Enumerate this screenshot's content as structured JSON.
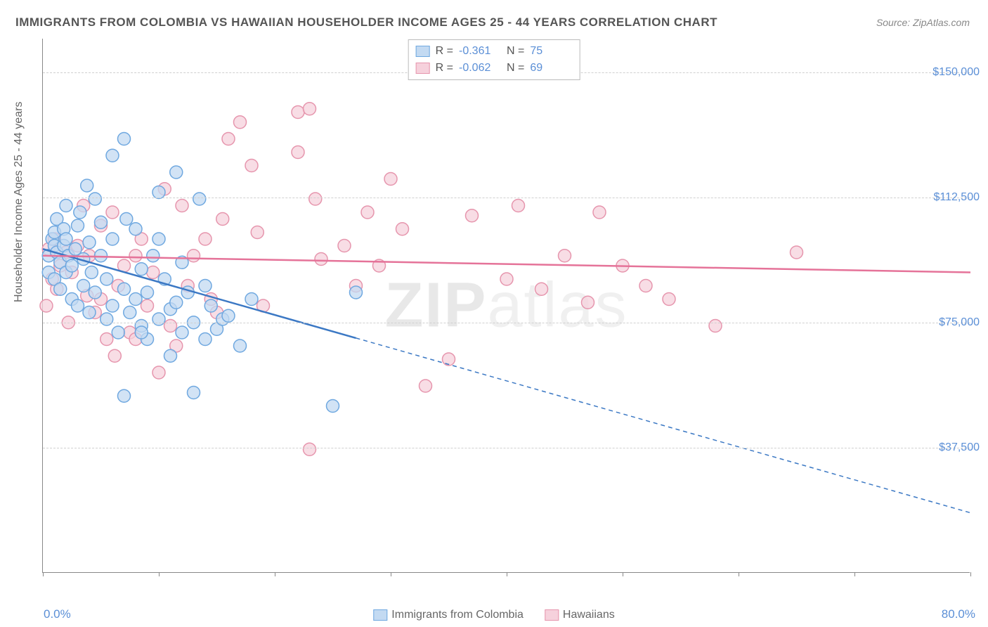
{
  "title": "IMMIGRANTS FROM COLOMBIA VS HAWAIIAN HOUSEHOLDER INCOME AGES 25 - 44 YEARS CORRELATION CHART",
  "source": "Source: ZipAtlas.com",
  "ylabel": "Householder Income Ages 25 - 44 years",
  "watermark_a": "ZIP",
  "watermark_b": "atlas",
  "chart": {
    "type": "scatter-correlation",
    "background_color": "#ffffff",
    "grid_color": "#d0d0d0",
    "axis_color": "#888888",
    "label_color": "#5b8fd6",
    "text_color": "#666666",
    "marker_radius": 9,
    "marker_stroke_width": 1.5,
    "line_width": 2.5,
    "xlim": [
      0,
      80
    ],
    "ylim": [
      0,
      160000
    ],
    "xticks": [
      0,
      10,
      20,
      30,
      40,
      50,
      60,
      70,
      80
    ],
    "xtick_labels": {
      "0": "0.0%",
      "80": "80.0%"
    },
    "yticks": [
      37500,
      75000,
      112500,
      150000
    ],
    "ytick_labels": [
      "$37,500",
      "$75,000",
      "$112,500",
      "$150,000"
    ],
    "series": [
      {
        "name": "Immigrants from Colombia",
        "fill": "#c3daf2",
        "stroke": "#6fa8e0",
        "line_color": "#3b78c4",
        "R_label": "R =",
        "R": "-0.361",
        "N_label": "N =",
        "N": "75",
        "trend": {
          "x1": 0,
          "y1": 97000,
          "x2": 80,
          "y2": 18000,
          "solid_until_x": 27
        },
        "points": [
          [
            0.5,
            95000
          ],
          [
            0.5,
            90000
          ],
          [
            0.8,
            100000
          ],
          [
            1,
            98000
          ],
          [
            1,
            102000
          ],
          [
            1,
            88000
          ],
          [
            1.2,
            96000
          ],
          [
            1.2,
            106000
          ],
          [
            1.5,
            93000
          ],
          [
            1.5,
            85000
          ],
          [
            1.8,
            98000
          ],
          [
            1.8,
            103000
          ],
          [
            2,
            100000
          ],
          [
            2,
            90000
          ],
          [
            2,
            110000
          ],
          [
            2.2,
            95000
          ],
          [
            2.5,
            82000
          ],
          [
            2.5,
            92000
          ],
          [
            2.8,
            97000
          ],
          [
            3,
            104000
          ],
          [
            3,
            80000
          ],
          [
            3.2,
            108000
          ],
          [
            3.5,
            86000
          ],
          [
            3.5,
            94000
          ],
          [
            4,
            99000
          ],
          [
            4,
            78000
          ],
          [
            4.2,
            90000
          ],
          [
            4.5,
            112000
          ],
          [
            4.5,
            84000
          ],
          [
            5,
            95000
          ],
          [
            5,
            105000
          ],
          [
            5.5,
            76000
          ],
          [
            5.5,
            88000
          ],
          [
            6,
            80000
          ],
          [
            6,
            100000
          ],
          [
            6.5,
            72000
          ],
          [
            7,
            85000
          ],
          [
            7,
            130000
          ],
          [
            7.2,
            106000
          ],
          [
            7.5,
            78000
          ],
          [
            8,
            82000
          ],
          [
            8,
            103000
          ],
          [
            8.5,
            74000
          ],
          [
            8.5,
            91000
          ],
          [
            9,
            84000
          ],
          [
            9,
            70000
          ],
          [
            10,
            114000
          ],
          [
            10,
            76000
          ],
          [
            10.5,
            88000
          ],
          [
            11,
            79000
          ],
          [
            11,
            65000
          ],
          [
            11.5,
            120000
          ],
          [
            11.5,
            81000
          ],
          [
            12,
            93000
          ],
          [
            12,
            72000
          ],
          [
            12.5,
            84000
          ],
          [
            13,
            75000
          ],
          [
            13.5,
            112000
          ],
          [
            14,
            70000
          ],
          [
            14,
            86000
          ],
          [
            14.5,
            80000
          ],
          [
            15,
            73000
          ],
          [
            15.5,
            76000
          ],
          [
            7,
            53000
          ],
          [
            13,
            54000
          ],
          [
            17,
            68000
          ],
          [
            16,
            77000
          ],
          [
            9.5,
            95000
          ],
          [
            10,
            100000
          ],
          [
            6,
            125000
          ],
          [
            3.8,
            116000
          ],
          [
            27,
            84000
          ],
          [
            25,
            50000
          ],
          [
            18,
            82000
          ],
          [
            8.5,
            72000
          ]
        ]
      },
      {
        "name": "Hawaiians",
        "fill": "#f6d1dc",
        "stroke": "#e695ad",
        "line_color": "#e57399",
        "R_label": "R =",
        "R": "-0.062",
        "N_label": "N =",
        "N": "69",
        "trend": {
          "x1": 0,
          "y1": 95000,
          "x2": 80,
          "y2": 90000,
          "solid_until_x": 80
        },
        "points": [
          [
            0.5,
            97000
          ],
          [
            1,
            100000
          ],
          [
            1.5,
            92000
          ],
          [
            2,
            96000
          ],
          [
            2.5,
            90000
          ],
          [
            1.2,
            85000
          ],
          [
            3,
            98000
          ],
          [
            3.5,
            110000
          ],
          [
            4,
            95000
          ],
          [
            4.5,
            78000
          ],
          [
            5,
            104000
          ],
          [
            5,
            82000
          ],
          [
            6,
            108000
          ],
          [
            6.5,
            86000
          ],
          [
            7,
            92000
          ],
          [
            7.5,
            72000
          ],
          [
            8,
            95000
          ],
          [
            8.5,
            100000
          ],
          [
            9,
            80000
          ],
          [
            9.5,
            90000
          ],
          [
            10,
            60000
          ],
          [
            11,
            74000
          ],
          [
            12,
            110000
          ],
          [
            12.5,
            86000
          ],
          [
            13,
            95000
          ],
          [
            14,
            100000
          ],
          [
            15,
            78000
          ],
          [
            15.5,
            106000
          ],
          [
            16,
            130000
          ],
          [
            17,
            135000
          ],
          [
            18,
            122000
          ],
          [
            18.5,
            102000
          ],
          [
            22,
            138000
          ],
          [
            22,
            126000
          ],
          [
            23,
            139000
          ],
          [
            23.5,
            112000
          ],
          [
            24,
            94000
          ],
          [
            26,
            98000
          ],
          [
            27,
            86000
          ],
          [
            28,
            108000
          ],
          [
            29,
            92000
          ],
          [
            30,
            118000
          ],
          [
            31,
            103000
          ],
          [
            33,
            56000
          ],
          [
            35,
            64000
          ],
          [
            37,
            107000
          ],
          [
            40,
            88000
          ],
          [
            41,
            110000
          ],
          [
            43,
            85000
          ],
          [
            45,
            95000
          ],
          [
            47,
            81000
          ],
          [
            48,
            108000
          ],
          [
            50,
            92000
          ],
          [
            52,
            86000
          ],
          [
            54,
            82000
          ],
          [
            58,
            74000
          ],
          [
            65,
            96000
          ],
          [
            0.8,
            88000
          ],
          [
            2.2,
            75000
          ],
          [
            3.8,
            83000
          ],
          [
            6.2,
            65000
          ],
          [
            11.5,
            68000
          ],
          [
            23,
            37000
          ],
          [
            0.3,
            80000
          ],
          [
            19,
            80000
          ],
          [
            14.5,
            82000
          ],
          [
            10.5,
            115000
          ],
          [
            8,
            70000
          ],
          [
            5.5,
            70000
          ]
        ]
      }
    ]
  }
}
